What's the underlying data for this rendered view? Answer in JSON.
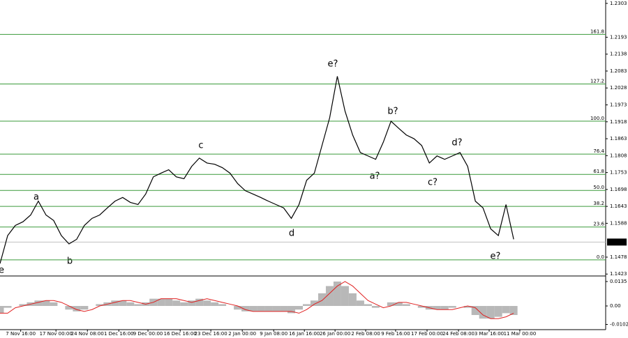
{
  "chart_data": [
    {
      "type": "line",
      "color": "#000000",
      "values": [
        1.1457,
        1.1548,
        1.1581,
        1.1593,
        1.1615,
        1.166,
        1.1615,
        1.1597,
        1.1548,
        1.1521,
        1.1536,
        1.1581,
        1.1604,
        1.1615,
        1.1638,
        1.166,
        1.1672,
        1.1656,
        1.1649,
        1.1683,
        1.1739,
        1.1751,
        1.1762,
        1.1739,
        1.1733,
        1.1773,
        1.18,
        1.1784,
        1.178,
        1.1769,
        1.1751,
        1.1717,
        1.1694,
        1.1683,
        1.1672,
        1.166,
        1.1649,
        1.1638,
        1.1604,
        1.1649,
        1.1728,
        1.1751,
        1.1841,
        1.1931,
        1.2066,
        1.1953,
        1.1875,
        1.1818,
        1.1807,
        1.1796,
        1.1852,
        1.192,
        1.1897,
        1.1875,
        1.1863,
        1.1841,
        1.1784,
        1.1807,
        1.1796,
        1.1807,
        1.1818,
        1.1773,
        1.166,
        1.1638,
        1.157,
        1.1548,
        1.1649,
        1.1536
      ],
      "xlim": [
        0,
        79
      ],
      "xticks": [
        {
          "value": 2.7,
          "label": "7 Nov 16:00"
        },
        {
          "value": 7.3,
          "label": "17 Nov 00:00"
        },
        {
          "value": 11.4,
          "label": "24 Nov 08:00"
        },
        {
          "value": 15.5,
          "label": "1 Dec 16:00"
        },
        {
          "value": 19.3,
          "label": "9 Dec 00:00"
        },
        {
          "value": 23.5,
          "label": "16 Dec 16:00"
        },
        {
          "value": 27.5,
          "label": "23 Dec 16:00"
        },
        {
          "value": 31.6,
          "label": "2 Jan 00:00"
        },
        {
          "value": 35.7,
          "label": "9 Jan 08:00"
        },
        {
          "value": 39.7,
          "label": "16 Jan 16:00"
        },
        {
          "value": 43.7,
          "label": "26 Jan 00:00"
        },
        {
          "value": 47.7,
          "label": "2 Feb 08:00"
        },
        {
          "value": 51.6,
          "label": "9 Feb 16:00"
        },
        {
          "value": 55.7,
          "label": "17 Feb 00:00"
        },
        {
          "value": 59.8,
          "label": "24 Feb 08:00"
        },
        {
          "value": 63.8,
          "label": "3 Mar 16:00"
        },
        {
          "value": 67.8,
          "label": "11 Mar 00:00"
        }
      ],
      "ylim": [
        1.1419,
        1.2314
      ],
      "yticks": [
        1.2303,
        1.2193,
        1.2138,
        1.2083,
        1.2028,
        1.1973,
        1.1918,
        1.1863,
        1.1808,
        1.1753,
        1.1698,
        1.1643,
        1.1588,
        1.1478,
        1.1423
      ],
      "last_price": 1.1527,
      "level_color": "#3a9a3a",
      "levels": [
        {
          "label": "161.8",
          "value": 1.2202
        },
        {
          "label": "127.2",
          "value": 1.2041
        },
        {
          "label": "100.0",
          "value": 1.192
        },
        {
          "label": "76.4",
          "value": 1.1813
        },
        {
          "label": "61.8",
          "value": 1.1747
        },
        {
          "label": "50.0",
          "value": 1.1695
        },
        {
          "label": "38.2",
          "value": 1.1643
        },
        {
          "label": "23.6",
          "value": 1.1576
        },
        {
          "label": "0.0",
          "value": 1.1469
        }
      ],
      "annotation_color": "#e01010",
      "annotations": [
        "e",
        "a",
        "b",
        "c",
        "d",
        "e?",
        "a?",
        "b?",
        "c?",
        "d?",
        "e?"
      ]
    },
    {
      "type": "bar",
      "color": "#b8b8b8",
      "signal_color": "#e02020",
      "values": [
        -0.004,
        -0.001,
        0.0,
        0.001,
        0.002,
        0.003,
        0.003,
        0.002,
        0.0,
        -0.002,
        -0.003,
        -0.002,
        0.0,
        0.001,
        0.002,
        0.003,
        0.003,
        0.002,
        0.001,
        0.002,
        0.004,
        0.004,
        0.004,
        0.003,
        0.002,
        0.003,
        0.004,
        0.003,
        0.002,
        0.001,
        0.0,
        -0.002,
        -0.003,
        -0.003,
        -0.003,
        -0.003,
        -0.003,
        -0.003,
        -0.004,
        -0.002,
        0.001,
        0.003,
        0.007,
        0.011,
        0.0135,
        0.011,
        0.007,
        0.003,
        0.001,
        -0.001,
        0.0,
        0.002,
        0.002,
        0.001,
        0.0,
        -0.001,
        -0.002,
        -0.002,
        -0.002,
        -0.001,
        0.0,
        -0.001,
        -0.005,
        -0.007,
        -0.007,
        -0.006,
        -0.004,
        -0.005
      ],
      "signal_values": [
        -0.004,
        -0.004,
        -0.001,
        0.0,
        0.001,
        0.002,
        0.003,
        0.003,
        0.002,
        0.0,
        -0.002,
        -0.003,
        -0.002,
        0.0,
        0.001,
        0.002,
        0.003,
        0.003,
        0.002,
        0.001,
        0.002,
        0.004,
        0.004,
        0.004,
        0.003,
        0.002,
        0.003,
        0.004,
        0.003,
        0.002,
        0.001,
        0.0,
        -0.002,
        -0.003,
        -0.003,
        -0.003,
        -0.003,
        -0.003,
        -0.003,
        -0.004,
        -0.002,
        0.001,
        0.003,
        0.007,
        0.011,
        0.0135,
        0.011,
        0.007,
        0.003,
        0.001,
        -0.001,
        0.0,
        0.002,
        0.002,
        0.001,
        0.0,
        -0.001,
        -0.002,
        -0.002,
        -0.002,
        -0.001,
        0.0,
        -0.001,
        -0.005,
        -0.007,
        -0.007,
        -0.006,
        -0.004
      ],
      "ylim": [
        -0.0127,
        0.0158
      ],
      "yticks": [
        0.0135,
        {
          "value": 0,
          "label": "0.00"
        },
        -0.0102
      ]
    }
  ]
}
